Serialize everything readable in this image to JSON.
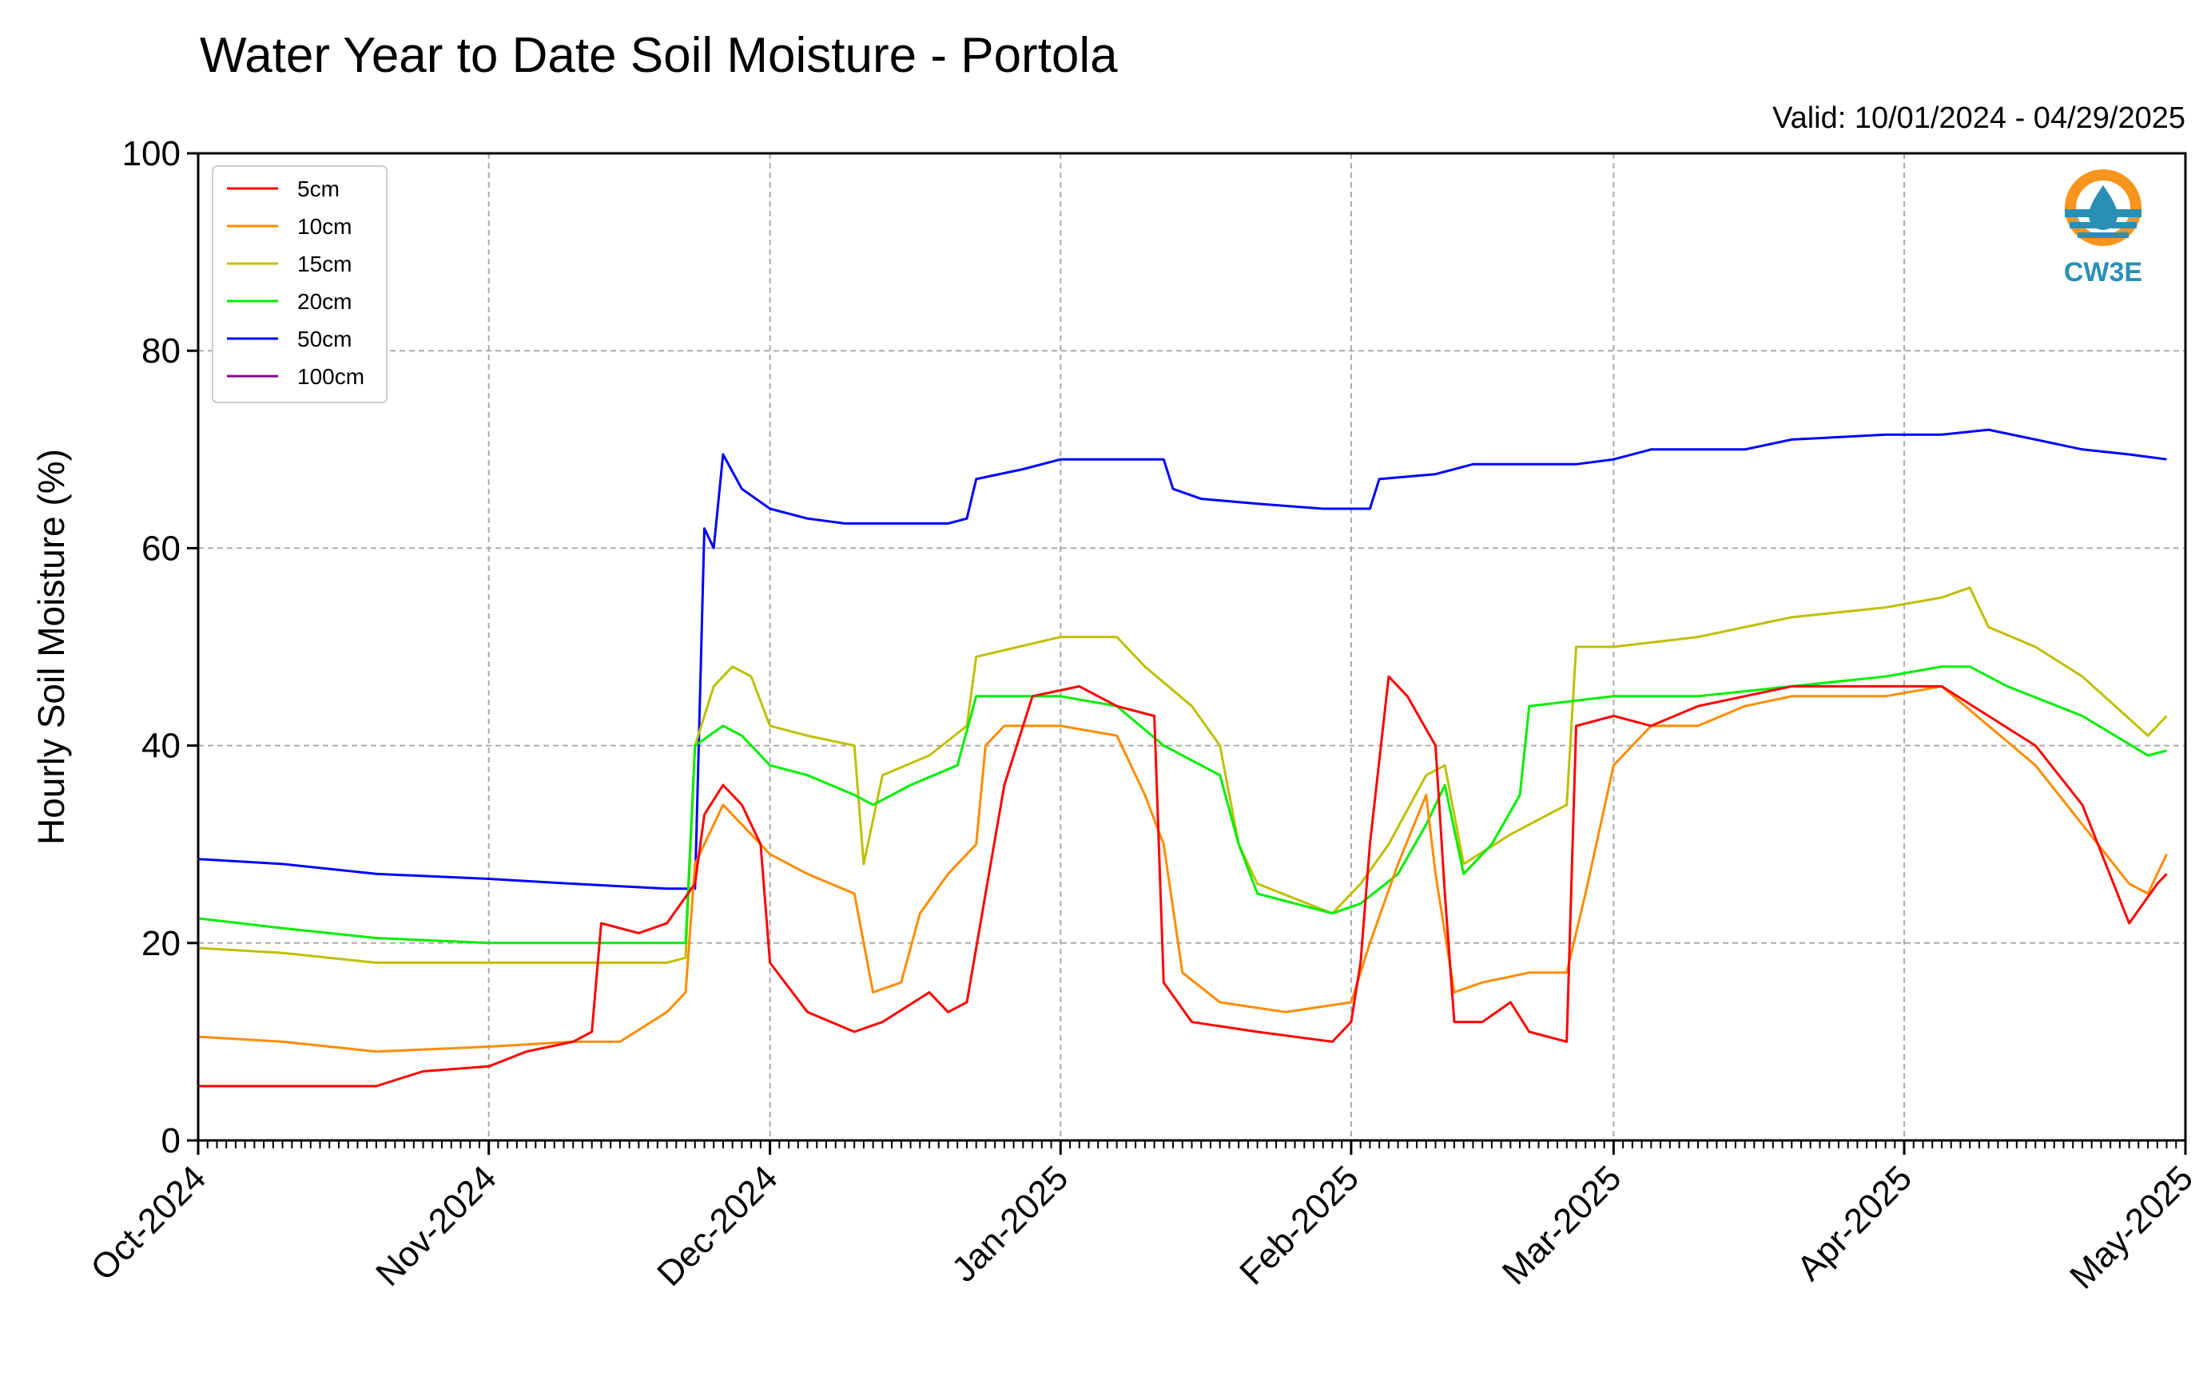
{
  "chart_data": {
    "type": "line",
    "title": "Water Year to Date Soil Moisture - Portola",
    "subtitle": "Valid: 10/01/2024 - 04/29/2025",
    "xlabel": "",
    "ylabel": "Hourly Soil Moisture (%)",
    "ylim": [
      0,
      100
    ],
    "yticks": [
      "0",
      "20",
      "40",
      "60",
      "80",
      "100"
    ],
    "xlim": [
      "2024-10-01",
      "2025-05-01"
    ],
    "xticks": [
      {
        "date": "2024-10-01",
        "label": "Oct-2024"
      },
      {
        "date": "2024-11-01",
        "label": "Nov-2024"
      },
      {
        "date": "2024-12-01",
        "label": "Dec-2024"
      },
      {
        "date": "2025-01-01",
        "label": "Jan-2025"
      },
      {
        "date": "2025-02-01",
        "label": "Feb-2025"
      },
      {
        "date": "2025-03-01",
        "label": "Mar-2025"
      },
      {
        "date": "2025-04-01",
        "label": "Apr-2025"
      },
      {
        "date": "2025-05-01",
        "label": "May-2025"
      }
    ],
    "grid": true,
    "legend_position": "top-left",
    "series": [
      {
        "name": "5cm",
        "color": "#ff0000",
        "points": [
          [
            "2024-10-01",
            5.5
          ],
          [
            "2024-10-10",
            5.5
          ],
          [
            "2024-10-20",
            5.5
          ],
          [
            "2024-10-25",
            7
          ],
          [
            "2024-11-01",
            7.5
          ],
          [
            "2024-11-05",
            9
          ],
          [
            "2024-11-10",
            10
          ],
          [
            "2024-11-12",
            11
          ],
          [
            "2024-11-13",
            22
          ],
          [
            "2024-11-17",
            21
          ],
          [
            "2024-11-20",
            22
          ],
          [
            "2024-11-23",
            26
          ],
          [
            "2024-11-24",
            33
          ],
          [
            "2024-11-26",
            36
          ],
          [
            "2024-11-28",
            34
          ],
          [
            "2024-11-30",
            30
          ],
          [
            "2024-12-01",
            18
          ],
          [
            "2024-12-05",
            13
          ],
          [
            "2024-12-10",
            11
          ],
          [
            "2024-12-13",
            12
          ],
          [
            "2024-12-18",
            15
          ],
          [
            "2024-12-20",
            13
          ],
          [
            "2024-12-22",
            14
          ],
          [
            "2024-12-24",
            25
          ],
          [
            "2024-12-26",
            36
          ],
          [
            "2024-12-29",
            45
          ],
          [
            "2025-01-03",
            46
          ],
          [
            "2025-01-07",
            44
          ],
          [
            "2025-01-11",
            43
          ],
          [
            "2025-01-12",
            16
          ],
          [
            "2025-01-15",
            12
          ],
          [
            "2025-01-22",
            11
          ],
          [
            "2025-01-30",
            10
          ],
          [
            "2025-02-01",
            12
          ],
          [
            "2025-02-02",
            18
          ],
          [
            "2025-02-03",
            30
          ],
          [
            "2025-02-05",
            47
          ],
          [
            "2025-02-07",
            45
          ],
          [
            "2025-02-10",
            40
          ],
          [
            "2025-02-11",
            25
          ],
          [
            "2025-02-12",
            12
          ],
          [
            "2025-02-15",
            12
          ],
          [
            "2025-02-18",
            14
          ],
          [
            "2025-02-20",
            11
          ],
          [
            "2025-02-24",
            10
          ],
          [
            "2025-02-25",
            42
          ],
          [
            "2025-03-01",
            43
          ],
          [
            "2025-03-05",
            42
          ],
          [
            "2025-03-10",
            44
          ],
          [
            "2025-03-20",
            46
          ],
          [
            "2025-03-30",
            46
          ],
          [
            "2025-04-05",
            46
          ],
          [
            "2025-04-10",
            43
          ],
          [
            "2025-04-15",
            40
          ],
          [
            "2025-04-20",
            34
          ],
          [
            "2025-04-25",
            22
          ],
          [
            "2025-04-28",
            26
          ],
          [
            "2025-04-29",
            27
          ]
        ]
      },
      {
        "name": "10cm",
        "color": "#ff8c00",
        "points": [
          [
            "2024-10-01",
            10.5
          ],
          [
            "2024-10-10",
            10
          ],
          [
            "2024-10-20",
            9
          ],
          [
            "2024-11-01",
            9.5
          ],
          [
            "2024-11-10",
            10
          ],
          [
            "2024-11-15",
            10
          ],
          [
            "2024-11-20",
            13
          ],
          [
            "2024-11-22",
            15
          ],
          [
            "2024-11-23",
            28
          ],
          [
            "2024-11-26",
            34
          ],
          [
            "2024-11-29",
            31
          ],
          [
            "2024-12-01",
            29
          ],
          [
            "2024-12-05",
            27
          ],
          [
            "2024-12-10",
            25
          ],
          [
            "2024-12-12",
            15
          ],
          [
            "2024-12-15",
            16
          ],
          [
            "2024-12-17",
            23
          ],
          [
            "2024-12-20",
            27
          ],
          [
            "2024-12-23",
            30
          ],
          [
            "2024-12-24",
            40
          ],
          [
            "2024-12-26",
            42
          ],
          [
            "2025-01-01",
            42
          ],
          [
            "2025-01-07",
            41
          ],
          [
            "2025-01-10",
            35
          ],
          [
            "2025-01-12",
            30
          ],
          [
            "2025-01-14",
            17
          ],
          [
            "2025-01-18",
            14
          ],
          [
            "2025-01-25",
            13
          ],
          [
            "2025-02-01",
            14
          ],
          [
            "2025-02-03",
            20
          ],
          [
            "2025-02-06",
            28
          ],
          [
            "2025-02-09",
            35
          ],
          [
            "2025-02-10",
            27
          ],
          [
            "2025-02-12",
            15
          ],
          [
            "2025-02-15",
            16
          ],
          [
            "2025-02-20",
            17
          ],
          [
            "2025-02-24",
            17
          ],
          [
            "2025-02-26",
            25
          ],
          [
            "2025-03-01",
            38
          ],
          [
            "2025-03-05",
            42
          ],
          [
            "2025-03-10",
            42
          ],
          [
            "2025-03-15",
            44
          ],
          [
            "2025-03-20",
            45
          ],
          [
            "2025-03-25",
            45
          ],
          [
            "2025-03-30",
            45
          ],
          [
            "2025-04-05",
            46
          ],
          [
            "2025-04-10",
            42
          ],
          [
            "2025-04-15",
            38
          ],
          [
            "2025-04-20",
            32
          ],
          [
            "2025-04-25",
            26
          ],
          [
            "2025-04-27",
            25
          ],
          [
            "2025-04-29",
            29
          ]
        ]
      },
      {
        "name": "15cm",
        "color": "#bfbf00",
        "points": [
          [
            "2024-10-01",
            19.5
          ],
          [
            "2024-10-10",
            19
          ],
          [
            "2024-10-20",
            18
          ],
          [
            "2024-11-01",
            18
          ],
          [
            "2024-11-10",
            18
          ],
          [
            "2024-11-15",
            18
          ],
          [
            "2024-11-20",
            18
          ],
          [
            "2024-11-22",
            18.5
          ],
          [
            "2024-11-23",
            40
          ],
          [
            "2024-11-25",
            46
          ],
          [
            "2024-11-27",
            48
          ],
          [
            "2024-11-29",
            47
          ],
          [
            "2024-12-01",
            42
          ],
          [
            "2024-12-05",
            41
          ],
          [
            "2024-12-10",
            40
          ],
          [
            "2024-12-11",
            28
          ],
          [
            "2024-12-13",
            37
          ],
          [
            "2024-12-18",
            39
          ],
          [
            "2024-12-22",
            42
          ],
          [
            "2024-12-23",
            49
          ],
          [
            "2025-01-01",
            51
          ],
          [
            "2025-01-07",
            51
          ],
          [
            "2025-01-10",
            48
          ],
          [
            "2025-01-15",
            44
          ],
          [
            "2025-01-18",
            40
          ],
          [
            "2025-01-20",
            30
          ],
          [
            "2025-01-22",
            26
          ],
          [
            "2025-01-30",
            23
          ],
          [
            "2025-02-02",
            26
          ],
          [
            "2025-02-05",
            30
          ],
          [
            "2025-02-09",
            37
          ],
          [
            "2025-02-11",
            38
          ],
          [
            "2025-02-13",
            28
          ],
          [
            "2025-02-18",
            31
          ],
          [
            "2025-02-24",
            34
          ],
          [
            "2025-02-25",
            50
          ],
          [
            "2025-03-01",
            50
          ],
          [
            "2025-03-10",
            51
          ],
          [
            "2025-03-20",
            53
          ],
          [
            "2025-03-30",
            54
          ],
          [
            "2025-04-05",
            55
          ],
          [
            "2025-04-08",
            56
          ],
          [
            "2025-04-10",
            52
          ],
          [
            "2025-04-15",
            50
          ],
          [
            "2025-04-20",
            47
          ],
          [
            "2025-04-27",
            41
          ],
          [
            "2025-04-29",
            43
          ]
        ]
      },
      {
        "name": "20cm",
        "color": "#00ee00",
        "points": [
          [
            "2024-10-01",
            22.5
          ],
          [
            "2024-10-10",
            21.5
          ],
          [
            "2024-10-20",
            20.5
          ],
          [
            "2024-11-01",
            20
          ],
          [
            "2024-11-10",
            20
          ],
          [
            "2024-11-15",
            20
          ],
          [
            "2024-11-22",
            20
          ],
          [
            "2024-11-23",
            40
          ],
          [
            "2024-11-26",
            42
          ],
          [
            "2024-11-28",
            41
          ],
          [
            "2024-12-01",
            38
          ],
          [
            "2024-12-05",
            37
          ],
          [
            "2024-12-10",
            35
          ],
          [
            "2024-12-12",
            34
          ],
          [
            "2024-12-16",
            36
          ],
          [
            "2024-12-21",
            38
          ],
          [
            "2024-12-23",
            45
          ],
          [
            "2025-01-01",
            45
          ],
          [
            "2025-01-07",
            44
          ],
          [
            "2025-01-12",
            40
          ],
          [
            "2025-01-18",
            37
          ],
          [
            "2025-01-20",
            30
          ],
          [
            "2025-01-22",
            25
          ],
          [
            "2025-01-30",
            23
          ],
          [
            "2025-02-02",
            24
          ],
          [
            "2025-02-06",
            27
          ],
          [
            "2025-02-09",
            32
          ],
          [
            "2025-02-11",
            36
          ],
          [
            "2025-02-13",
            27
          ],
          [
            "2025-02-16",
            30
          ],
          [
            "2025-02-19",
            35
          ],
          [
            "2025-02-20",
            44
          ],
          [
            "2025-03-01",
            45
          ],
          [
            "2025-03-10",
            45
          ],
          [
            "2025-03-20",
            46
          ],
          [
            "2025-03-30",
            47
          ],
          [
            "2025-04-05",
            48
          ],
          [
            "2025-04-08",
            48
          ],
          [
            "2025-04-12",
            46
          ],
          [
            "2025-04-20",
            43
          ],
          [
            "2025-04-27",
            39
          ],
          [
            "2025-04-29",
            39.5
          ]
        ]
      },
      {
        "name": "50cm",
        "color": "#0000ff",
        "points": [
          [
            "2024-10-01",
            28.5
          ],
          [
            "2024-10-10",
            28
          ],
          [
            "2024-10-20",
            27
          ],
          [
            "2024-11-01",
            26.5
          ],
          [
            "2024-11-10",
            26
          ],
          [
            "2024-11-20",
            25.5
          ],
          [
            "2024-11-23",
            25.5
          ],
          [
            "2024-11-24",
            62
          ],
          [
            "2024-11-25",
            60
          ],
          [
            "2024-11-26",
            69.5
          ],
          [
            "2024-11-28",
            66
          ],
          [
            "2024-12-01",
            64
          ],
          [
            "2024-12-05",
            63
          ],
          [
            "2024-12-09",
            62.5
          ],
          [
            "2024-12-14",
            62.5
          ],
          [
            "2024-12-20",
            62.5
          ],
          [
            "2024-12-22",
            63
          ],
          [
            "2024-12-23",
            67
          ],
          [
            "2024-12-28",
            68
          ],
          [
            "2025-01-01",
            69
          ],
          [
            "2025-01-07",
            69
          ],
          [
            "2025-01-12",
            69
          ],
          [
            "2025-01-13",
            66
          ],
          [
            "2025-01-16",
            65
          ],
          [
            "2025-01-22",
            64.5
          ],
          [
            "2025-01-29",
            64
          ],
          [
            "2025-02-01",
            64
          ],
          [
            "2025-02-03",
            64
          ],
          [
            "2025-02-04",
            67
          ],
          [
            "2025-02-10",
            67.5
          ],
          [
            "2025-02-14",
            68.5
          ],
          [
            "2025-02-25",
            68.5
          ],
          [
            "2025-03-01",
            69
          ],
          [
            "2025-03-05",
            70
          ],
          [
            "2025-03-15",
            70
          ],
          [
            "2025-03-20",
            71
          ],
          [
            "2025-03-30",
            71.5
          ],
          [
            "2025-04-05",
            71.5
          ],
          [
            "2025-04-10",
            72
          ],
          [
            "2025-04-15",
            71
          ],
          [
            "2025-04-20",
            70
          ],
          [
            "2025-04-25",
            69.5
          ],
          [
            "2025-04-29",
            69
          ]
        ]
      },
      {
        "name": "100cm",
        "color": "#8b008b",
        "points": []
      }
    ]
  },
  "logo": {
    "text": "CW3E",
    "icon": "water-drop-logo-icon"
  }
}
